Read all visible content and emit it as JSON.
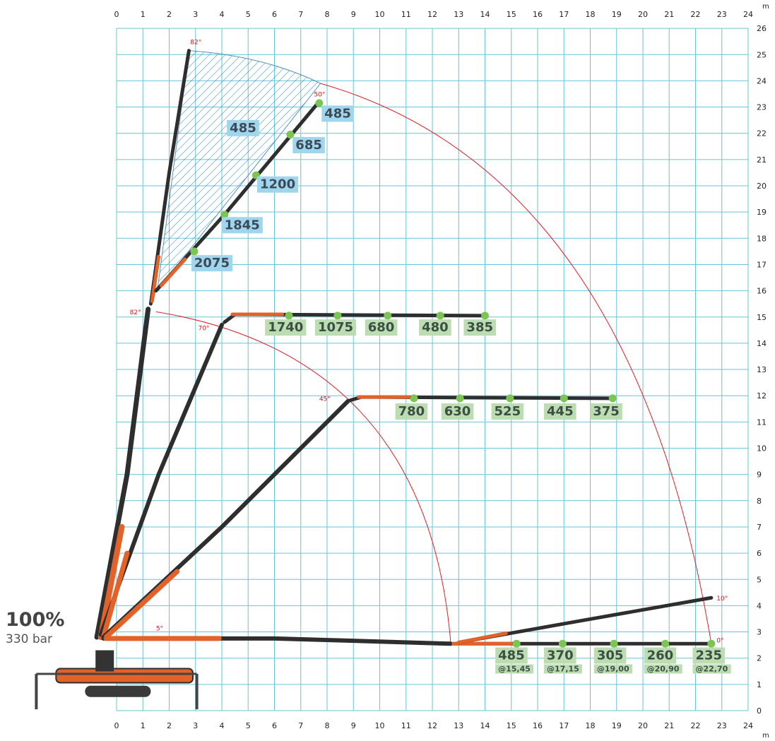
{
  "info": {
    "percent": "100%",
    "pressure": "330 bar"
  },
  "axes": {
    "unit": "m",
    "x_ticks": [
      "0",
      "1",
      "2",
      "3",
      "4",
      "5",
      "6",
      "7",
      "8",
      "9",
      "10",
      "11",
      "12",
      "13",
      "14",
      "15",
      "16",
      "17",
      "18",
      "19",
      "20",
      "21",
      "22",
      "23",
      "24"
    ],
    "y_ticks": [
      "0",
      "1",
      "2",
      "3",
      "4",
      "5",
      "6",
      "7",
      "8",
      "9",
      "10",
      "11",
      "12",
      "13",
      "14",
      "15",
      "16",
      "17",
      "18",
      "19",
      "20",
      "21",
      "22",
      "23",
      "24",
      "25",
      "26"
    ]
  },
  "colors": {
    "grid": "#67c6d6",
    "boom_dark": "#2e2e2e",
    "boom_orange": "#e2622a",
    "arc": "#e0202a",
    "point": "#7bc553",
    "label_green": "#bcdcb2",
    "label_blue": "#9fd6ee",
    "hatch": "#2a86bf"
  },
  "angles": [
    {
      "text": "82°",
      "x": 2.8,
      "y": 25.4
    },
    {
      "text": "50°",
      "x": 7.5,
      "y": 23.4
    },
    {
      "text": "82°",
      "x": 0.5,
      "y": 15.1
    },
    {
      "text": "70°",
      "x": 3.1,
      "y": 14.5
    },
    {
      "text": "45°",
      "x": 7.7,
      "y": 11.8
    },
    {
      "text": "5°",
      "x": 1.5,
      "y": 3.05
    },
    {
      "text": "10°",
      "x": 22.8,
      "y": 4.2
    },
    {
      "text": "0°",
      "x": 22.8,
      "y": 2.6
    }
  ],
  "load_points": [
    {
      "x": 7.7,
      "y": 23.15,
      "label": "485",
      "lx": 7.9,
      "ly": 22.6
    },
    {
      "x": 6.6,
      "y": 21.95,
      "label": "685",
      "lx": 6.8,
      "ly": 21.4
    },
    {
      "x": 5.3,
      "y": 20.4,
      "label": "1200",
      "lx": 5.45,
      "ly": 19.9
    },
    {
      "x": 4.1,
      "y": 18.9,
      "label": "1845",
      "lx": 4.1,
      "ly": 18.35
    },
    {
      "x": 2.95,
      "y": 17.5,
      "label": "2075",
      "lx": 2.95,
      "ly": 16.9
    },
    {
      "x": 6.55,
      "y": 15.05,
      "label": "1740",
      "lx": 5.75,
      "ly": 14.45
    },
    {
      "x": 8.4,
      "y": 15.05,
      "label": "1075",
      "lx": 7.65,
      "ly": 14.45
    },
    {
      "x": 10.3,
      "y": 15.05,
      "label": "680",
      "lx": 9.55,
      "ly": 14.45
    },
    {
      "x": 12.3,
      "y": 15.05,
      "label": "480",
      "lx": 11.6,
      "ly": 14.45
    },
    {
      "x": 14.0,
      "y": 15.05,
      "label": "385",
      "lx": 13.3,
      "ly": 14.45
    },
    {
      "x": 11.3,
      "y": 11.9,
      "label": "780",
      "lx": 10.7,
      "ly": 11.25
    },
    {
      "x": 13.05,
      "y": 11.9,
      "label": "630",
      "lx": 12.45,
      "ly": 11.25
    },
    {
      "x": 14.95,
      "y": 11.9,
      "label": "525",
      "lx": 14.35,
      "ly": 11.25
    },
    {
      "x": 17.0,
      "y": 11.9,
      "label": "445",
      "lx": 16.35,
      "ly": 11.25
    },
    {
      "x": 18.85,
      "y": 11.9,
      "label": "375",
      "lx": 18.1,
      "ly": 11.25
    },
    {
      "x": 15.2,
      "y": 2.55,
      "label": "485",
      "lx": 14.5,
      "ly": 1.95,
      "sub": "@15,45"
    },
    {
      "x": 16.95,
      "y": 2.55,
      "label": "370",
      "lx": 16.35,
      "ly": 1.95,
      "sub": "@17,15"
    },
    {
      "x": 18.9,
      "y": 2.55,
      "label": "305",
      "lx": 18.25,
      "ly": 1.95,
      "sub": "@19,00"
    },
    {
      "x": 20.85,
      "y": 2.55,
      "label": "260",
      "lx": 20.15,
      "ly": 1.95,
      "sub": "@20,90"
    },
    {
      "x": 22.6,
      "y": 2.55,
      "label": "235",
      "lx": 22.0,
      "ly": 1.95,
      "sub": "@22,70"
    }
  ],
  "area_label": {
    "text": "485",
    "x": 4.3,
    "y": 22.05
  }
}
